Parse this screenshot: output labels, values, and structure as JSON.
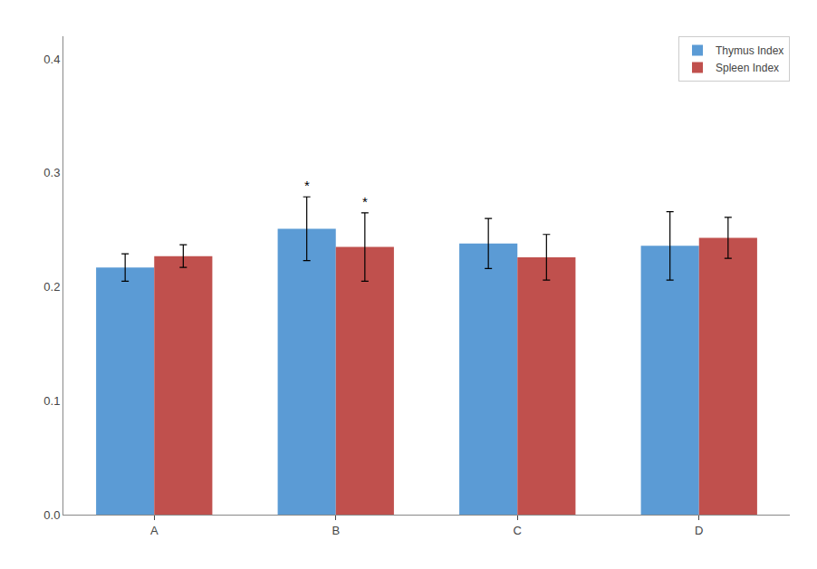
{
  "chart_data": {
    "type": "bar",
    "categories": [
      "A",
      "B",
      "C",
      "D"
    ],
    "series": [
      {
        "name": "Thymus Index",
        "color": "#5B9BD5",
        "values": [
          0.217,
          0.251,
          0.238,
          0.236
        ],
        "errors": [
          0.012,
          0.028,
          0.022,
          0.03
        ]
      },
      {
        "name": "Spleen Index",
        "color": "#C0504D",
        "values": [
          0.227,
          0.235,
          0.226,
          0.243
        ],
        "errors": [
          0.01,
          0.03,
          0.02,
          0.018
        ]
      }
    ],
    "ylim": [
      0.0,
      0.42
    ],
    "yticks": [
      {
        "value": 0.0,
        "label": "0.0"
      },
      0.1,
      0.2,
      0.3,
      0.4
    ],
    "grid": false,
    "legend": "upper right",
    "annotations": [
      {
        "text": "*",
        "x": "B",
        "series": "Thymus Index"
      },
      {
        "text": "*",
        "x": "B",
        "series": "Spleen Index"
      }
    ]
  }
}
